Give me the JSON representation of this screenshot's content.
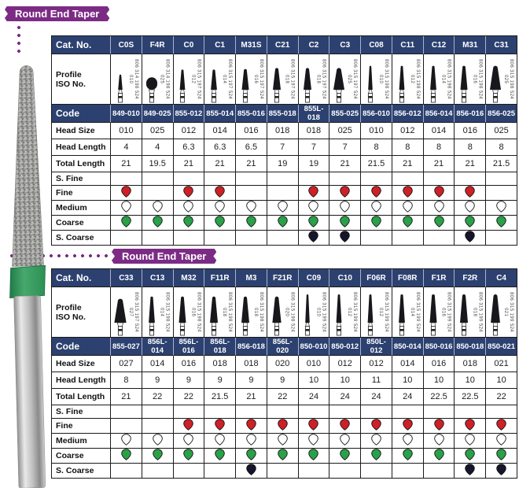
{
  "badges": {
    "badge1": "Round End Taper",
    "badge2": "Round End Taper"
  },
  "row_labels": {
    "cat_no": "Cat. No.",
    "profile_line1": "Profile",
    "profile_line2": "ISO No.",
    "code": "Code",
    "head_size": "Head Size",
    "head_length": "Head Length",
    "total_length": "Total Length",
    "s_fine": "S. Fine",
    "fine": "Fine",
    "medium": "Medium",
    "coarse": "Coarse",
    "s_coarse": "S. Coarse"
  },
  "grit_colors": {
    "fine": "#cf2027",
    "medium": "#ffffff",
    "coarse": "#2aa148",
    "s_coarse": "#15162c"
  },
  "theme": {
    "navy": "#2c4170",
    "purple": "#7c2b85",
    "border": "#1a1a1a"
  },
  "tables": [
    {
      "title": "Round End Taper",
      "columns": [
        {
          "cat_no": "C0S",
          "iso": "806 314 198 524 010",
          "code": "849-010",
          "head_size": "010",
          "head_length": "4",
          "total_length": "21",
          "shape": "taper",
          "s_fine": false,
          "fine": true,
          "medium": true,
          "coarse": true,
          "s_coarse": false
        },
        {
          "cat_no": "F4R",
          "iso": "806 314 198 524 025",
          "code": "849-025",
          "head_size": "025",
          "head_length": "4",
          "total_length": "19.5",
          "shape": "egg",
          "s_fine": false,
          "fine": false,
          "medium": true,
          "coarse": true,
          "s_coarse": false
        },
        {
          "cat_no": "C0",
          "iso": "806 315 197 524 012",
          "code": "855-012",
          "head_size": "012",
          "head_length": "6.3",
          "total_length": "21",
          "shape": "taper",
          "s_fine": false,
          "fine": true,
          "medium": true,
          "coarse": true,
          "s_coarse": false
        },
        {
          "cat_no": "C1",
          "iso": "806 315 197 524 014",
          "code": "855-014",
          "head_size": "014",
          "head_length": "6.3",
          "total_length": "21",
          "shape": "taper",
          "s_fine": false,
          "fine": true,
          "medium": true,
          "coarse": true,
          "s_coarse": false
        },
        {
          "cat_no": "M31S",
          "iso": "806 315 197 524 016",
          "code": "855-016",
          "head_size": "016",
          "head_length": "6.5",
          "total_length": "21",
          "shape": "taper",
          "s_fine": false,
          "fine": false,
          "medium": true,
          "coarse": true,
          "s_coarse": false
        },
        {
          "cat_no": "C21",
          "iso": "806 315 197 524 018",
          "code": "855-018",
          "head_size": "018",
          "head_length": "7",
          "total_length": "19",
          "shape": "taper",
          "s_fine": false,
          "fine": false,
          "medium": true,
          "coarse": true,
          "s_coarse": false
        },
        {
          "cat_no": "C2",
          "iso": "806 315 197 524 018",
          "code": "855L-018",
          "head_size": "018",
          "head_length": "7",
          "total_length": "19",
          "shape": "taper",
          "s_fine": false,
          "fine": true,
          "medium": true,
          "coarse": true,
          "s_coarse": true
        },
        {
          "cat_no": "C3",
          "iso": "806 315 197 524 025",
          "code": "855-025",
          "head_size": "025",
          "head_length": "7",
          "total_length": "21",
          "shape": "taper",
          "s_fine": false,
          "fine": true,
          "medium": true,
          "coarse": true,
          "s_coarse": true
        },
        {
          "cat_no": "C08",
          "iso": "806 315 198 524 010",
          "code": "856-010",
          "head_size": "010",
          "head_length": "8",
          "total_length": "21.5",
          "shape": "taper",
          "s_fine": false,
          "fine": true,
          "medium": true,
          "coarse": true,
          "s_coarse": false
        },
        {
          "cat_no": "C11",
          "iso": "806 315 198 524 012",
          "code": "856-012",
          "head_size": "012",
          "head_length": "8",
          "total_length": "21",
          "shape": "taper",
          "s_fine": false,
          "fine": true,
          "medium": true,
          "coarse": true,
          "s_coarse": false
        },
        {
          "cat_no": "C12",
          "iso": "806 315 198 524 014",
          "code": "856-014",
          "head_size": "014",
          "head_length": "8",
          "total_length": "21",
          "shape": "taper",
          "s_fine": false,
          "fine": true,
          "medium": true,
          "coarse": true,
          "s_coarse": false
        },
        {
          "cat_no": "M31",
          "iso": "806 315 198 524 016",
          "code": "856-016",
          "head_size": "016",
          "head_length": "8",
          "total_length": "21",
          "shape": "taper",
          "s_fine": false,
          "fine": true,
          "medium": true,
          "coarse": true,
          "s_coarse": true
        },
        {
          "cat_no": "C31",
          "iso": "806 315 198 524 025",
          "code": "856-025",
          "head_size": "025",
          "head_length": "8",
          "total_length": "21.5",
          "shape": "taper",
          "s_fine": false,
          "fine": false,
          "medium": true,
          "coarse": true,
          "s_coarse": false
        }
      ]
    },
    {
      "title": "Round End Taper",
      "columns": [
        {
          "cat_no": "C33",
          "iso": "806 315 197 524 027",
          "code": "855-027",
          "head_size": "027",
          "head_length": "8",
          "total_length": "21",
          "shape": "taper",
          "s_fine": false,
          "fine": false,
          "medium": true,
          "coarse": true,
          "s_coarse": false
        },
        {
          "cat_no": "C13",
          "iso": "806 315 198 524 014",
          "code": "856L-014",
          "head_size": "014",
          "head_length": "9",
          "total_length": "22",
          "shape": "taper",
          "s_fine": false,
          "fine": false,
          "medium": true,
          "coarse": true,
          "s_coarse": false
        },
        {
          "cat_no": "M32",
          "iso": "806 315 198 524 016",
          "code": "856L-016",
          "head_size": "016",
          "head_length": "9",
          "total_length": "22",
          "shape": "taper",
          "s_fine": false,
          "fine": true,
          "medium": true,
          "coarse": true,
          "s_coarse": false
        },
        {
          "cat_no": "F11R",
          "iso": "806 315 198 524 018",
          "code": "856L-018",
          "head_size": "018",
          "head_length": "9",
          "total_length": "21.5",
          "shape": "taper",
          "s_fine": false,
          "fine": true,
          "medium": true,
          "coarse": true,
          "s_coarse": false
        },
        {
          "cat_no": "M3",
          "iso": "806 315 198 524 018",
          "code": "856-018",
          "head_size": "018",
          "head_length": "9",
          "total_length": "21",
          "shape": "taper",
          "s_fine": false,
          "fine": true,
          "medium": true,
          "coarse": true,
          "s_coarse": true
        },
        {
          "cat_no": "F21R",
          "iso": "806 315 198 524 020",
          "code": "856L-020",
          "head_size": "020",
          "head_length": "9",
          "total_length": "22",
          "shape": "taper",
          "s_fine": false,
          "fine": true,
          "medium": true,
          "coarse": true,
          "s_coarse": false
        },
        {
          "cat_no": "C09",
          "iso": "806 315 199 524 010",
          "code": "850-010",
          "head_size": "010",
          "head_length": "10",
          "total_length": "24",
          "shape": "taper",
          "s_fine": false,
          "fine": true,
          "medium": true,
          "coarse": true,
          "s_coarse": false
        },
        {
          "cat_no": "C10",
          "iso": "806 315 199 524 012",
          "code": "850-012",
          "head_size": "012",
          "head_length": "10",
          "total_length": "24",
          "shape": "taper",
          "s_fine": false,
          "fine": true,
          "medium": true,
          "coarse": true,
          "s_coarse": false
        },
        {
          "cat_no": "F06R",
          "iso": "806 315 199 524 012",
          "code": "850L-012",
          "head_size": "012",
          "head_length": "11",
          "total_length": "24",
          "shape": "taper",
          "s_fine": false,
          "fine": true,
          "medium": true,
          "coarse": true,
          "s_coarse": false
        },
        {
          "cat_no": "F08R",
          "iso": "806 315 199 524 014",
          "code": "850-014",
          "head_size": "014",
          "head_length": "10",
          "total_length": "24",
          "shape": "taper",
          "s_fine": false,
          "fine": true,
          "medium": true,
          "coarse": true,
          "s_coarse": false
        },
        {
          "cat_no": "F1R",
          "iso": "806 315 199 524 016",
          "code": "850-016",
          "head_size": "016",
          "head_length": "10",
          "total_length": "22.5",
          "shape": "taper",
          "s_fine": false,
          "fine": true,
          "medium": true,
          "coarse": true,
          "s_coarse": false
        },
        {
          "cat_no": "F2R",
          "iso": "806 315 199 524 018",
          "code": "850-018",
          "head_size": "018",
          "head_length": "10",
          "total_length": "22.5",
          "shape": "taper",
          "s_fine": false,
          "fine": true,
          "medium": true,
          "coarse": true,
          "s_coarse": true
        },
        {
          "cat_no": "C4",
          "iso": "806 315 199 524 021",
          "code": "850-021",
          "head_size": "021",
          "head_length": "10",
          "total_length": "22",
          "shape": "taper",
          "s_fine": false,
          "fine": true,
          "medium": true,
          "coarse": true,
          "s_coarse": true
        }
      ]
    }
  ]
}
